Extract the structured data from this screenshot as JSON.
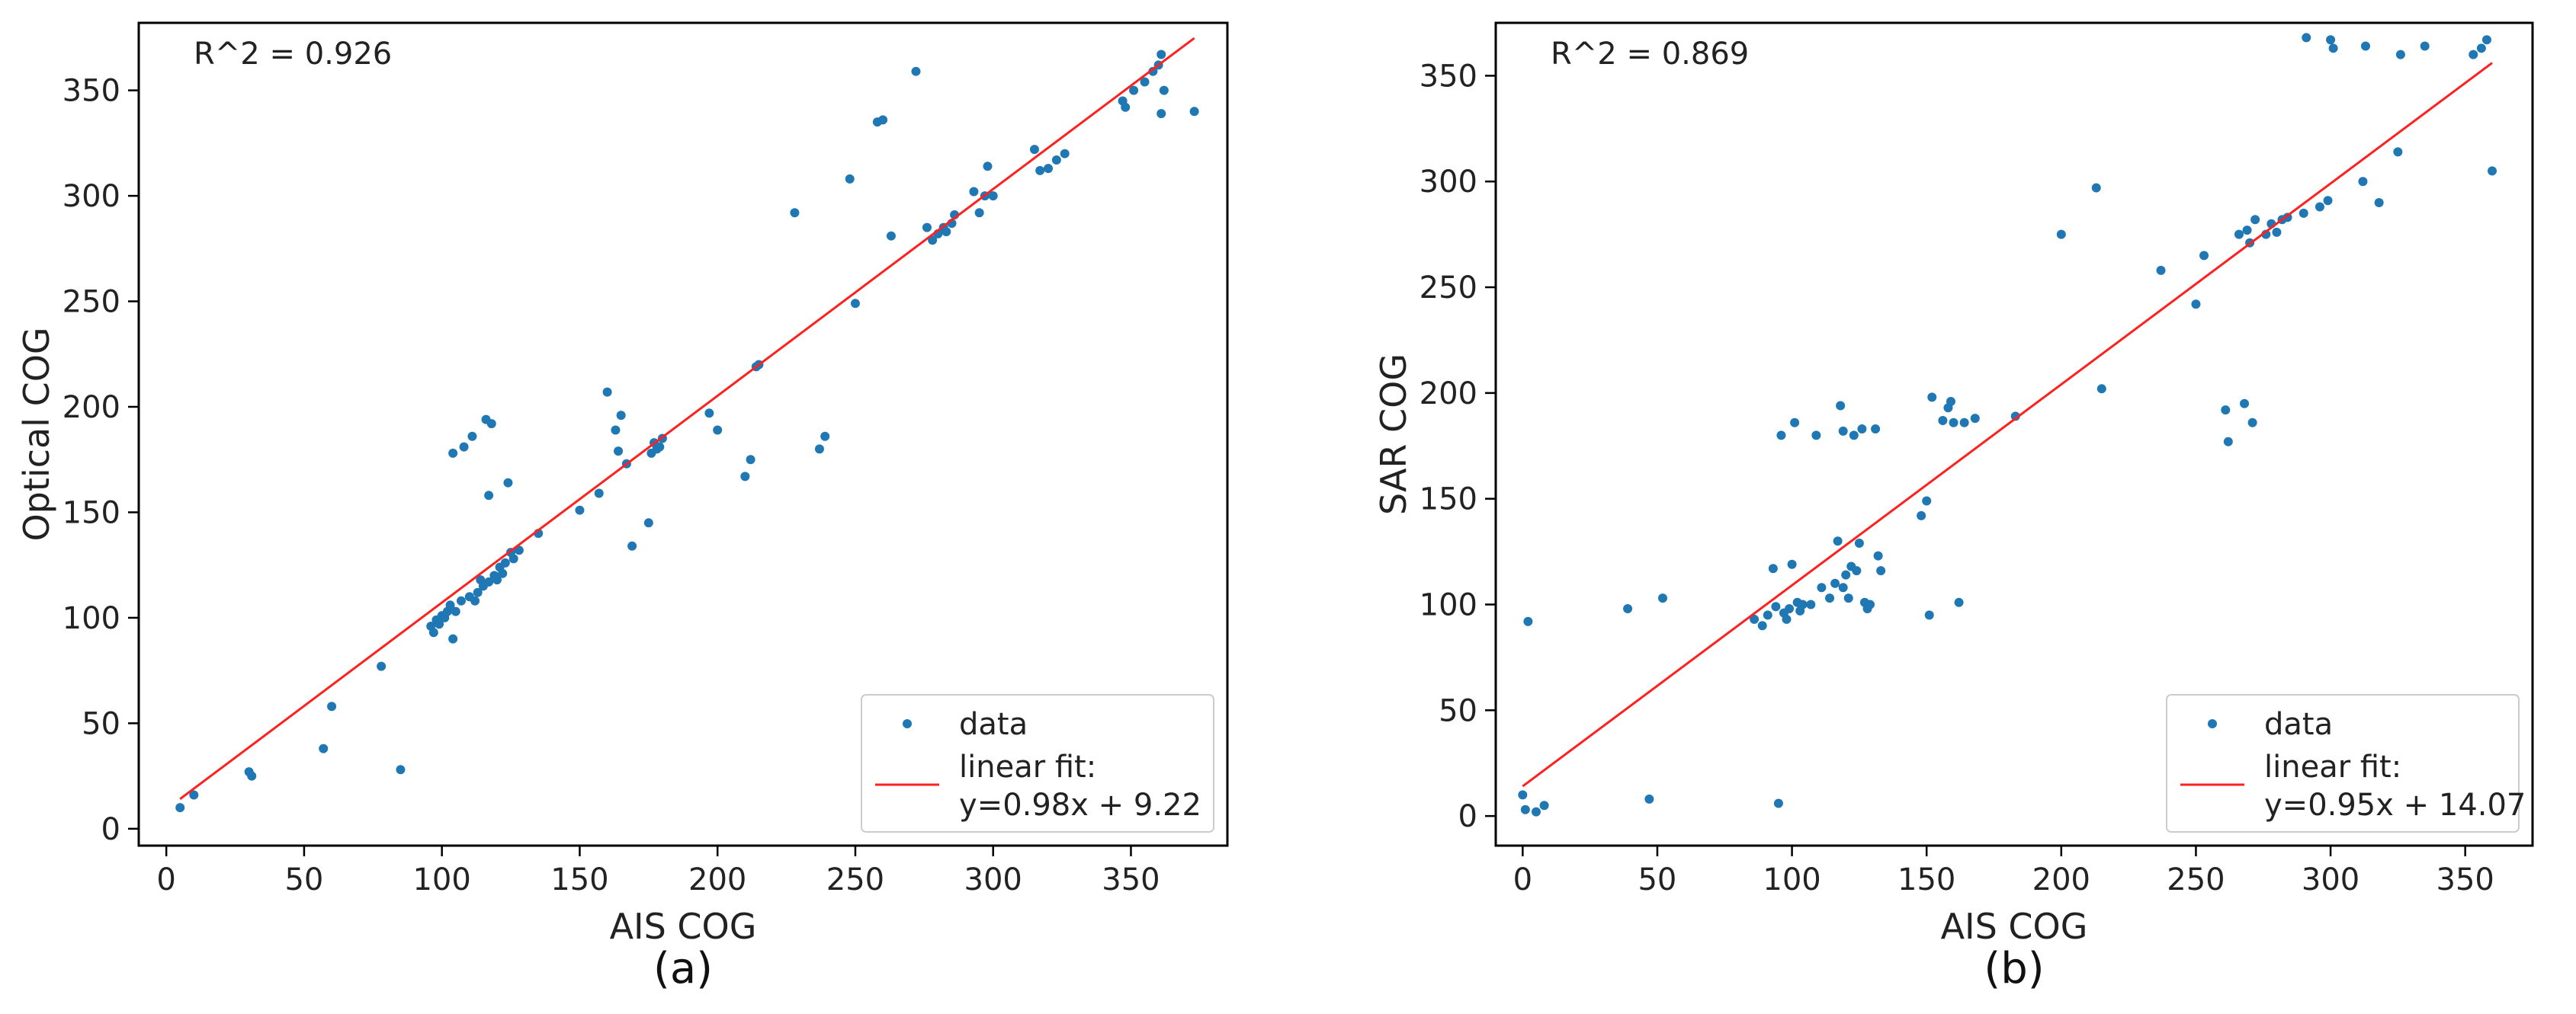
{
  "chart_data": [
    {
      "type": "scatter",
      "panel_caption": "(a)",
      "xlabel": "AIS COG",
      "ylabel": "Optical COG",
      "r2_text": "R^2 = 0.926",
      "xlim": [
        -10,
        385
      ],
      "ylim": [
        -8,
        382
      ],
      "xticks": [
        0,
        50,
        100,
        150,
        200,
        250,
        300,
        350
      ],
      "yticks": [
        0,
        50,
        100,
        150,
        200,
        250,
        300,
        350
      ],
      "legend": {
        "data_label": "data",
        "fit_label_line1": "linear fit:",
        "fit_label_line2": "y=0.98x + 9.22",
        "position": "lower-right"
      },
      "fit": {
        "slope": 0.98,
        "intercept": 9.22,
        "x_range": [
          5,
          373
        ]
      },
      "colors": {
        "points": "#1f77b4",
        "fit": "#ff2020"
      },
      "points": [
        [
          5,
          10
        ],
        [
          10,
          16
        ],
        [
          30,
          27
        ],
        [
          31,
          25
        ],
        [
          57,
          38
        ],
        [
          60,
          58
        ],
        [
          78,
          77
        ],
        [
          85,
          28
        ],
        [
          96,
          96
        ],
        [
          97,
          93
        ],
        [
          98,
          99
        ],
        [
          99,
          97
        ],
        [
          100,
          101
        ],
        [
          101,
          100
        ],
        [
          102,
          103
        ],
        [
          103,
          106
        ],
        [
          104,
          90
        ],
        [
          105,
          103
        ],
        [
          104,
          178
        ],
        [
          107,
          108
        ],
        [
          108,
          181
        ],
        [
          110,
          110
        ],
        [
          111,
          186
        ],
        [
          112,
          108
        ],
        [
          113,
          112
        ],
        [
          114,
          118
        ],
        [
          115,
          115
        ],
        [
          116,
          194
        ],
        [
          117,
          158
        ],
        [
          117,
          117
        ],
        [
          118,
          192
        ],
        [
          119,
          120
        ],
        [
          120,
          118
        ],
        [
          121,
          124
        ],
        [
          122,
          121
        ],
        [
          123,
          126
        ],
        [
          124,
          164
        ],
        [
          125,
          131
        ],
        [
          126,
          128
        ],
        [
          128,
          132
        ],
        [
          135,
          140
        ],
        [
          150,
          151
        ],
        [
          157,
          159
        ],
        [
          160,
          207
        ],
        [
          163,
          189
        ],
        [
          164,
          179
        ],
        [
          165,
          196
        ],
        [
          167,
          173
        ],
        [
          169,
          134
        ],
        [
          175,
          145
        ],
        [
          176,
          178
        ],
        [
          177,
          183
        ],
        [
          178,
          180
        ],
        [
          179,
          181
        ],
        [
          180,
          185
        ],
        [
          197,
          197
        ],
        [
          200,
          189
        ],
        [
          210,
          167
        ],
        [
          212,
          175
        ],
        [
          214,
          219
        ],
        [
          215,
          220
        ],
        [
          228,
          292
        ],
        [
          237,
          180
        ],
        [
          239,
          186
        ],
        [
          248,
          308
        ],
        [
          250,
          249
        ],
        [
          258,
          335
        ],
        [
          260,
          336
        ],
        [
          263,
          281
        ],
        [
          272,
          359
        ],
        [
          276,
          285
        ],
        [
          278,
          279
        ],
        [
          280,
          282
        ],
        [
          282,
          285
        ],
        [
          283,
          283
        ],
        [
          285,
          287
        ],
        [
          286,
          291
        ],
        [
          293,
          302
        ],
        [
          295,
          292
        ],
        [
          297,
          300
        ],
        [
          298,
          314
        ],
        [
          300,
          300
        ],
        [
          315,
          322
        ],
        [
          317,
          312
        ],
        [
          320,
          313
        ],
        [
          323,
          317
        ],
        [
          326,
          320
        ],
        [
          347,
          345
        ],
        [
          348,
          342
        ],
        [
          351,
          350
        ],
        [
          355,
          354
        ],
        [
          358,
          359
        ],
        [
          360,
          362
        ],
        [
          361,
          367
        ],
        [
          361,
          339
        ],
        [
          362,
          350
        ],
        [
          373,
          340
        ]
      ]
    },
    {
      "type": "scatter",
      "panel_caption": "(b)",
      "xlabel": "AIS COG",
      "ylabel": "SAR COG",
      "r2_text": "R^2 = 0.869",
      "xlim": [
        -10,
        375
      ],
      "ylim": [
        -14,
        375
      ],
      "xticks": [
        0,
        50,
        100,
        150,
        200,
        250,
        300,
        350
      ],
      "yticks": [
        0,
        50,
        100,
        150,
        200,
        250,
        300,
        350
      ],
      "legend": {
        "data_label": "data",
        "fit_label_line1": "linear fit:",
        "fit_label_line2": "y=0.95x + 14.07",
        "position": "lower-right"
      },
      "fit": {
        "slope": 0.95,
        "intercept": 14.07,
        "x_range": [
          0,
          360
        ]
      },
      "colors": {
        "points": "#1f77b4",
        "fit": "#ff2020"
      },
      "points": [
        [
          0,
          10
        ],
        [
          1,
          3
        ],
        [
          2,
          92
        ],
        [
          5,
          2
        ],
        [
          8,
          5
        ],
        [
          39,
          98
        ],
        [
          47,
          8
        ],
        [
          52,
          103
        ],
        [
          86,
          93
        ],
        [
          89,
          90
        ],
        [
          91,
          95
        ],
        [
          93,
          117
        ],
        [
          94,
          99
        ],
        [
          95,
          6
        ],
        [
          96,
          180
        ],
        [
          97,
          96
        ],
        [
          98,
          93
        ],
        [
          99,
          98
        ],
        [
          100,
          119
        ],
        [
          101,
          186
        ],
        [
          102,
          101
        ],
        [
          103,
          97
        ],
        [
          104,
          100
        ],
        [
          107,
          100
        ],
        [
          109,
          180
        ],
        [
          111,
          108
        ],
        [
          114,
          103
        ],
        [
          116,
          110
        ],
        [
          117,
          130
        ],
        [
          118,
          194
        ],
        [
          119,
          108
        ],
        [
          119,
          182
        ],
        [
          120,
          114
        ],
        [
          121,
          103
        ],
        [
          122,
          118
        ],
        [
          123,
          180
        ],
        [
          124,
          116
        ],
        [
          125,
          129
        ],
        [
          126,
          183
        ],
        [
          127,
          101
        ],
        [
          128,
          98
        ],
        [
          129,
          100
        ],
        [
          131,
          183
        ],
        [
          132,
          123
        ],
        [
          133,
          116
        ],
        [
          148,
          142
        ],
        [
          150,
          149
        ],
        [
          151,
          95
        ],
        [
          152,
          198
        ],
        [
          156,
          187
        ],
        [
          158,
          193
        ],
        [
          159,
          196
        ],
        [
          160,
          186
        ],
        [
          162,
          101
        ],
        [
          164,
          186
        ],
        [
          168,
          188
        ],
        [
          183,
          189
        ],
        [
          200,
          275
        ],
        [
          213,
          297
        ],
        [
          215,
          202
        ],
        [
          237,
          258
        ],
        [
          250,
          242
        ],
        [
          253,
          265
        ],
        [
          261,
          192
        ],
        [
          262,
          177
        ],
        [
          266,
          275
        ],
        [
          268,
          195
        ],
        [
          269,
          277
        ],
        [
          270,
          271
        ],
        [
          271,
          186
        ],
        [
          272,
          282
        ],
        [
          276,
          275
        ],
        [
          278,
          280
        ],
        [
          280,
          276
        ],
        [
          282,
          282
        ],
        [
          284,
          283
        ],
        [
          290,
          285
        ],
        [
          291,
          368
        ],
        [
          296,
          288
        ],
        [
          299,
          291
        ],
        [
          300,
          367
        ],
        [
          301,
          363
        ],
        [
          312,
          300
        ],
        [
          313,
          364
        ],
        [
          318,
          290
        ],
        [
          325,
          314
        ],
        [
          326,
          360
        ],
        [
          335,
          364
        ],
        [
          353,
          360
        ],
        [
          356,
          363
        ],
        [
          358,
          367
        ],
        [
          360,
          305
        ]
      ]
    }
  ]
}
